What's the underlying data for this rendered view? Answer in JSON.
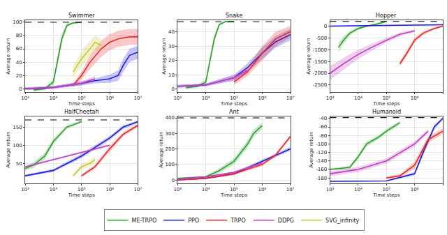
{
  "chart_data": [
    {
      "type": "line",
      "title": "Swimmer",
      "x_label": "Time steps",
      "y_label": "Average return",
      "log": "x",
      "grid": true,
      "legend": "bottom",
      "xlim": [
        1000,
        10000000
      ],
      "xticks": [
        {
          "value": 1000,
          "label": "10³"
        },
        {
          "value": 10000,
          "label": "10⁴"
        },
        {
          "value": 100000,
          "label": "10⁵"
        },
        {
          "value": 1000000,
          "label": "10⁶"
        },
        {
          "value": 10000000,
          "label": "10⁷"
        }
      ],
      "ylim": [
        -5,
        103
      ],
      "yticks": [
        0,
        20,
        40,
        60,
        80,
        100
      ],
      "reference": 100,
      "series": [
        {
          "name": "ME-TRPO",
          "color": "#2ca02c",
          "x": [
            2000,
            5000,
            10000,
            20000,
            30000,
            50000,
            100000
          ],
          "values": [
            -2,
            0,
            10,
            75,
            95,
            99,
            100
          ],
          "error": [
            2,
            2,
            5,
            8,
            3,
            1,
            1
          ]
        },
        {
          "name": "PPO",
          "color": "#1f1fd6",
          "x": [
            1000,
            10000,
            100000,
            300000,
            1000000,
            2000000,
            3000000,
            5000000,
            10000000
          ],
          "values": [
            0,
            2,
            8,
            12,
            15,
            20,
            35,
            50,
            55
          ],
          "error": [
            2,
            2,
            3,
            4,
            6,
            8,
            10,
            10,
            10
          ]
        },
        {
          "name": "TRPO",
          "color": "#e8282a",
          "x": [
            50000,
            100000,
            200000,
            500000,
            1000000,
            2000000,
            5000000,
            10000000
          ],
          "values": [
            5,
            20,
            40,
            60,
            70,
            75,
            78,
            78
          ],
          "error": [
            3,
            6,
            10,
            12,
            12,
            12,
            12,
            12
          ]
        },
        {
          "name": "DDPG",
          "color": "#c040c0",
          "x": [
            1000,
            10000,
            100000,
            300000
          ],
          "values": [
            0,
            2,
            8,
            15
          ],
          "error": [
            2,
            2,
            3,
            4
          ]
        },
        {
          "name": "SVG_infinity",
          "color": "#c8c832",
          "x": [
            50000,
            100000,
            200000,
            300000,
            500000
          ],
          "values": [
            25,
            45,
            60,
            70,
            65
          ],
          "error": [
            8,
            12,
            12,
            10,
            10
          ]
        }
      ]
    },
    {
      "type": "line",
      "title": "Snake",
      "x_label": "Time steps",
      "y_label": "Average return",
      "log": "x",
      "grid": true,
      "legend": "bottom",
      "xlim": [
        1000,
        10000000
      ],
      "xticks": [
        {
          "value": 1000,
          "label": "10³"
        },
        {
          "value": 10000,
          "label": "10⁴"
        },
        {
          "value": 100000,
          "label": "10⁵"
        },
        {
          "value": 1000000,
          "label": "10⁶"
        },
        {
          "value": 10000000,
          "label": "10⁷"
        }
      ],
      "ylim": [
        -2,
        48
      ],
      "yticks": [
        0,
        10,
        20,
        30,
        40
      ],
      "reference": 47,
      "series": [
        {
          "name": "ME-TRPO",
          "color": "#2ca02c",
          "x": [
            2000,
            5000,
            10000,
            20000,
            30000,
            50000,
            100000
          ],
          "values": [
            1,
            2,
            5,
            35,
            45,
            47,
            47
          ],
          "error": [
            1,
            1,
            2,
            3,
            1,
            0.5,
            0.5
          ]
        },
        {
          "name": "PPO",
          "color": "#1f1fd6",
          "x": [
            1000,
            10000,
            100000,
            300000,
            1000000,
            3000000,
            10000000
          ],
          "values": [
            2,
            3,
            8,
            15,
            25,
            33,
            38
          ],
          "error": [
            1,
            1,
            2,
            3,
            4,
            4,
            4
          ]
        },
        {
          "name": "TRPO",
          "color": "#e8282a",
          "x": [
            100000,
            300000,
            1000000,
            3000000,
            10000000
          ],
          "values": [
            5,
            12,
            25,
            35,
            40
          ],
          "error": [
            2,
            3,
            5,
            5,
            4
          ]
        },
        {
          "name": "DDPG",
          "color": "#c040c0",
          "x": [
            1000,
            10000,
            100000,
            300000
          ],
          "values": [
            2,
            3,
            8,
            13
          ],
          "error": [
            1,
            1,
            2,
            2
          ]
        }
      ]
    },
    {
      "type": "line",
      "title": "Hopper",
      "x_label": "Time steps",
      "y_label": "Average return",
      "log": "x",
      "grid": true,
      "legend": "bottom",
      "xlim": [
        1000,
        10000000
      ],
      "xticks": [
        {
          "value": 1000,
          "label": "10³"
        },
        {
          "value": 10000,
          "label": "10⁴"
        },
        {
          "value": 100000,
          "label": "10⁵"
        },
        {
          "value": 1000000,
          "label": "10⁶"
        },
        {
          "value": 10000000,
          "label": "10⁷"
        }
      ],
      "ylim": [
        -2800,
        250
      ],
      "yticks": [
        -2500,
        -2000,
        -1500,
        -1000,
        -500,
        0
      ],
      "reference": 200,
      "series": [
        {
          "name": "ME-TRPO",
          "color": "#2ca02c",
          "x": [
            2000,
            3000,
            5000,
            10000,
            20000,
            50000,
            100000
          ],
          "values": [
            -900,
            -600,
            -300,
            -100,
            0,
            100,
            200
          ],
          "error": [
            200,
            150,
            100,
            60,
            40,
            30,
            20
          ]
        },
        {
          "name": "PPO",
          "color": "#1f1fd6",
          "x": [
            1000,
            10000,
            100000,
            1000000,
            10000000
          ],
          "values": [
            0,
            20,
            30,
            40,
            60
          ],
          "error": [
            20,
            20,
            20,
            20,
            20
          ]
        },
        {
          "name": "TRPO",
          "color": "#e8282a",
          "x": [
            300000,
            500000,
            1000000,
            2000000,
            5000000,
            10000000
          ],
          "values": [
            -1600,
            -1200,
            -600,
            -300,
            -100,
            0
          ],
          "error": [
            100,
            120,
            100,
            80,
            50,
            30
          ]
        },
        {
          "name": "DDPG",
          "color": "#c040c0",
          "x": [
            1000,
            3000,
            10000,
            30000,
            100000,
            300000,
            1000000
          ],
          "values": [
            -2000,
            -1600,
            -1200,
            -900,
            -600,
            -350,
            -200
          ],
          "error": [
            300,
            250,
            200,
            150,
            100,
            80,
            60
          ]
        }
      ]
    },
    {
      "type": "line",
      "title": "HalfCheetah",
      "x_label": "Time steps",
      "y_label": "Average return",
      "log": "x",
      "grid": true,
      "legend": "bottom",
      "xlim": [
        1000,
        10000000
      ],
      "xticks": [
        {
          "value": 1000,
          "label": "10³"
        },
        {
          "value": 10000,
          "label": "10⁴"
        },
        {
          "value": 100000,
          "label": "10⁵"
        },
        {
          "value": 1000000,
          "label": "10⁶"
        },
        {
          "value": 10000000,
          "label": "10⁷"
        }
      ],
      "ylim": [
        -5,
        180
      ],
      "yticks": [
        50,
        100,
        150
      ],
      "reference": 170,
      "series": [
        {
          "name": "ME-TRPO",
          "color": "#2ca02c",
          "x": [
            1000,
            2000,
            5000,
            10000,
            30000,
            100000
          ],
          "values": [
            35,
            45,
            70,
            110,
            150,
            165
          ],
          "error": [
            5,
            8,
            10,
            8,
            5,
            3
          ]
        },
        {
          "name": "PPO",
          "color": "#1f1fd6",
          "x": [
            1000,
            10000,
            100000,
            1000000,
            3000000,
            10000000
          ],
          "values": [
            15,
            30,
            70,
            120,
            150,
            165
          ],
          "error": [
            3,
            4,
            6,
            6,
            5,
            4
          ]
        },
        {
          "name": "TRPO",
          "color": "#e8282a",
          "x": [
            100000,
            300000,
            1000000,
            3000000,
            10000000
          ],
          "values": [
            15,
            40,
            90,
            130,
            155
          ],
          "error": [
            4,
            6,
            8,
            6,
            5
          ]
        },
        {
          "name": "DDPG",
          "color": "#c040c0",
          "x": [
            1000,
            10000,
            100000,
            1000000
          ],
          "values": [
            40,
            60,
            80,
            100
          ],
          "error": [
            3,
            3,
            3,
            3
          ]
        },
        {
          "name": "SVG_infinity",
          "color": "#c8c832",
          "x": [
            50000,
            100000,
            200000,
            300000
          ],
          "values": [
            15,
            40,
            50,
            60
          ],
          "error": [
            5,
            8,
            8,
            8
          ]
        }
      ]
    },
    {
      "type": "line",
      "title": "Ant",
      "x_label": "Time steps",
      "y_label": "Average return",
      "log": "x",
      "grid": true,
      "legend": "bottom",
      "xlim": [
        1000,
        10000000
      ],
      "xticks": [
        {
          "value": 1000,
          "label": "10³"
        },
        {
          "value": 10000,
          "label": "10⁴"
        },
        {
          "value": 100000,
          "label": "10⁵"
        },
        {
          "value": 1000000,
          "label": "10⁶"
        },
        {
          "value": 10000000,
          "label": "10⁷"
        }
      ],
      "ylim": [
        -20,
        410
      ],
      "yticks": [
        0,
        100,
        200,
        300,
        400
      ],
      "reference": 400,
      "series": [
        {
          "name": "ME-TRPO",
          "color": "#2ca02c",
          "x": [
            1000,
            10000,
            30000,
            100000,
            300000,
            500000,
            1000000
          ],
          "values": [
            10,
            20,
            60,
            120,
            230,
            300,
            350
          ],
          "error": [
            5,
            8,
            15,
            20,
            25,
            25,
            20
          ]
        },
        {
          "name": "PPO",
          "color": "#1f1fd6",
          "x": [
            1000,
            10000,
            100000,
            1000000,
            3000000,
            10000000
          ],
          "values": [
            0,
            10,
            40,
            120,
            160,
            200
          ],
          "error": [
            3,
            5,
            8,
            10,
            12,
            12
          ]
        },
        {
          "name": "TRPO",
          "color": "#e8282a",
          "x": [
            1000,
            10000,
            100000,
            1000000,
            3000000,
            10000000
          ],
          "values": [
            0,
            10,
            40,
            100,
            160,
            280
          ],
          "error": [
            3,
            5,
            8,
            10,
            12,
            12
          ]
        },
        {
          "name": "DDPG",
          "color": "#c040c0",
          "x": [
            1000,
            10000,
            100000,
            1000000
          ],
          "values": [
            5,
            20,
            50,
            110
          ],
          "error": [
            3,
            4,
            5,
            6
          ]
        }
      ]
    },
    {
      "type": "line",
      "title": "Humanoid",
      "x_label": "Time steps",
      "y_label": "Average return",
      "log": "x",
      "grid": true,
      "legend": "bottom",
      "xlim": [
        1000,
        10000000
      ],
      "xticks": [
        {
          "value": 1000,
          "label": "10³"
        },
        {
          "value": 10000,
          "label": "10⁴"
        },
        {
          "value": 100000,
          "label": "10⁵"
        },
        {
          "value": 1000000,
          "label": "10⁶"
        },
        {
          "value": 10000000,
          "label": "10⁷"
        }
      ],
      "ylim": [
        -192,
        -35
      ],
      "yticks": [
        -180,
        -160,
        -140,
        -120,
        -100,
        -80,
        -60,
        -40
      ],
      "reference": -38,
      "series": [
        {
          "name": "ME-TRPO",
          "color": "#2ca02c",
          "x": [
            1000,
            2000,
            5000,
            10000,
            20000,
            50000,
            100000,
            300000
          ],
          "values": [
            -160,
            -158,
            -155,
            -130,
            -100,
            -85,
            -70,
            -50
          ],
          "error": [
            3,
            3,
            4,
            6,
            6,
            5,
            5,
            4
          ]
        },
        {
          "name": "PPO",
          "color": "#1f1fd6",
          "x": [
            1000,
            10000,
            100000,
            1000000,
            2000000,
            5000000,
            10000000
          ],
          "values": [
            -188,
            -188,
            -187,
            -170,
            -120,
            -60,
            -40
          ],
          "error": [
            1,
            1,
            1,
            4,
            8,
            6,
            3
          ]
        },
        {
          "name": "TRPO",
          "color": "#e8282a",
          "x": [
            100000,
            300000,
            1000000,
            3000000,
            10000000
          ],
          "values": [
            -180,
            -175,
            -150,
            -90,
            -70
          ],
          "error": [
            3,
            4,
            8,
            8,
            6
          ]
        },
        {
          "name": "DDPG",
          "color": "#c040c0",
          "x": [
            1000,
            10000,
            100000,
            1000000,
            3000000
          ],
          "values": [
            -170,
            -160,
            -140,
            -100,
            -70
          ],
          "error": [
            6,
            6,
            6,
            6,
            5
          ]
        }
      ]
    }
  ]
}
